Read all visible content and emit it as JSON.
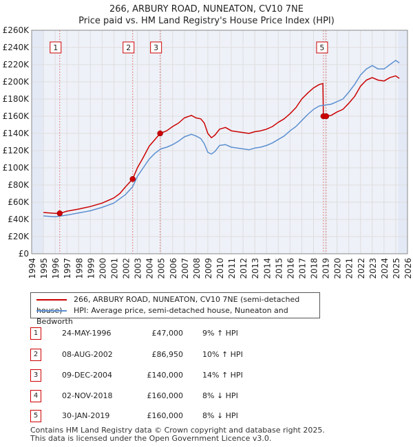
{
  "title_line1": "266, ARBURY ROAD, NUNEATON, CV10 7NE",
  "title_line2": "Price paid vs. HM Land Registry's House Price Index (HPI)",
  "legend": {
    "property": "266, ARBURY ROAD, NUNEATON, CV10 7NE (semi-detached house)",
    "hpi": "HPI: Average price, semi-detached house, Nuneaton and Bedworth"
  },
  "colors": {
    "property": "#cc0000",
    "hpi": "#5b8fd0",
    "grid": "#dddddd",
    "plot_bg": "#eef1f8",
    "highlight": "#e3e9f5"
  },
  "sales": [
    {
      "num": "1",
      "date": "24-MAY-1996",
      "price": "£47,000",
      "hpi": "9% ↑ HPI"
    },
    {
      "num": "2",
      "date": "08-AUG-2002",
      "price": "£86,950",
      "hpi": "10% ↑ HPI"
    },
    {
      "num": "3",
      "date": "09-DEC-2004",
      "price": "£140,000",
      "hpi": "14% ↑ HPI"
    },
    {
      "num": "4",
      "date": "02-NOV-2018",
      "price": "£160,000",
      "hpi": "8% ↓ HPI"
    },
    {
      "num": "5",
      "date": "30-JAN-2019",
      "price": "£160,000",
      "hpi": "8% ↓ HPI"
    }
  ],
  "footer": {
    "line1": "Contains HM Land Registry data © Crown copyright and database right 2025.",
    "line2": "This data is licensed under the Open Government Licence v3.0."
  },
  "chart_data": {
    "type": "line",
    "title": "266, ARBURY ROAD, NUNEATON, CV10 7NE",
    "subtitle": "Price paid vs. HM Land Registry's House Price Index (HPI)",
    "xlabel": "",
    "ylabel": "",
    "xlim": [
      1994,
      2026
    ],
    "ylim": [
      0,
      260000
    ],
    "y_ticks": [
      0,
      20000,
      40000,
      60000,
      80000,
      100000,
      120000,
      140000,
      160000,
      180000,
      200000,
      220000,
      240000,
      260000
    ],
    "y_tick_labels": [
      "£0",
      "£20K",
      "£40K",
      "£60K",
      "£80K",
      "£100K",
      "£120K",
      "£140K",
      "£160K",
      "£180K",
      "£200K",
      "£220K",
      "£240K",
      "£260K"
    ],
    "x_ticks": [
      1994,
      1995,
      1996,
      1997,
      1998,
      1999,
      2000,
      2001,
      2002,
      2003,
      2004,
      2005,
      2006,
      2007,
      2008,
      2009,
      2010,
      2011,
      2012,
      2013,
      2014,
      2015,
      2016,
      2017,
      2018,
      2019,
      2020,
      2021,
      2022,
      2023,
      2024,
      2025,
      2026
    ],
    "x_tick_labels": [
      "1994",
      "1995",
      "1996",
      "1997",
      "1998",
      "1999",
      "2000",
      "2001",
      "2002",
      "2003",
      "2004",
      "2005",
      "2006",
      "2007",
      "2008",
      "2009",
      "2010",
      "2011",
      "2012",
      "2013",
      "2014",
      "2015",
      "2016",
      "2017",
      "2018",
      "2019",
      "2020",
      "2021",
      "2022",
      "2023",
      "2024",
      "2025",
      "2026"
    ],
    "highlight_ranges": [
      [
        1994,
        1995
      ],
      [
        2025.2,
        2026
      ]
    ],
    "grid": true,
    "sale_markers": [
      {
        "label": "1",
        "x": 1996.39,
        "y": 47000
      },
      {
        "label": "2",
        "x": 2002.6,
        "y": 86950
      },
      {
        "label": "3",
        "x": 2004.94,
        "y": 140000
      },
      {
        "label": "4",
        "x": 2018.84,
        "y": 160000
      },
      {
        "label": "5",
        "x": 2019.08,
        "y": 160000
      }
    ],
    "marker_label_numbers": [
      "1",
      "2",
      "3",
      "5"
    ],
    "series": [
      {
        "name": "266, ARBURY ROAD, NUNEATON, CV10 7NE (semi-detached house)",
        "color": "#cc0000",
        "points": [
          [
            1995,
            48000
          ],
          [
            1995.5,
            47500
          ],
          [
            1996,
            47000
          ],
          [
            1996.39,
            47000
          ],
          [
            1997,
            49500
          ],
          [
            1998,
            52000
          ],
          [
            1999,
            55000
          ],
          [
            2000,
            59000
          ],
          [
            2001,
            65000
          ],
          [
            2001.5,
            70000
          ],
          [
            2002,
            78000
          ],
          [
            2002.6,
            86950
          ],
          [
            2003,
            100000
          ],
          [
            2003.5,
            112000
          ],
          [
            2004,
            125000
          ],
          [
            2004.5,
            133000
          ],
          [
            2004.94,
            140000
          ],
          [
            2005.5,
            143000
          ],
          [
            2006,
            148000
          ],
          [
            2006.5,
            152000
          ],
          [
            2007,
            158000
          ],
          [
            2007.6,
            161000
          ],
          [
            2008,
            158000
          ],
          [
            2008.4,
            157000
          ],
          [
            2008.7,
            152000
          ],
          [
            2009,
            140000
          ],
          [
            2009.3,
            135000
          ],
          [
            2009.6,
            138000
          ],
          [
            2010,
            145000
          ],
          [
            2010.5,
            147000
          ],
          [
            2011,
            143000
          ],
          [
            2011.5,
            142000
          ],
          [
            2012,
            141000
          ],
          [
            2012.5,
            140000
          ],
          [
            2013,
            142000
          ],
          [
            2013.5,
            143000
          ],
          [
            2014,
            145000
          ],
          [
            2014.5,
            148000
          ],
          [
            2015,
            153000
          ],
          [
            2015.5,
            157000
          ],
          [
            2016,
            163000
          ],
          [
            2016.5,
            170000
          ],
          [
            2017,
            180000
          ],
          [
            2017.5,
            187000
          ],
          [
            2018,
            193000
          ],
          [
            2018.5,
            197000
          ],
          [
            2018.8,
            198000
          ],
          [
            2018.84,
            160000
          ],
          [
            2019.08,
            160000
          ],
          [
            2019.5,
            161000
          ],
          [
            2020,
            165000
          ],
          [
            2020.5,
            168000
          ],
          [
            2021,
            175000
          ],
          [
            2021.5,
            183000
          ],
          [
            2022,
            195000
          ],
          [
            2022.5,
            202000
          ],
          [
            2023,
            205000
          ],
          [
            2023.5,
            202000
          ],
          [
            2024,
            201000
          ],
          [
            2024.5,
            205000
          ],
          [
            2025,
            207000
          ],
          [
            2025.3,
            204000
          ]
        ]
      },
      {
        "name": "HPI: Average price, semi-detached house, Nuneaton and Bedworth",
        "color": "#5b8fd0",
        "points": [
          [
            1995,
            44000
          ],
          [
            1995.5,
            43500
          ],
          [
            1996,
            43000
          ],
          [
            1997,
            45000
          ],
          [
            1998,
            47500
          ],
          [
            1999,
            50000
          ],
          [
            2000,
            54000
          ],
          [
            2001,
            59000
          ],
          [
            2002,
            69000
          ],
          [
            2002.6,
            78000
          ],
          [
            2003,
            90000
          ],
          [
            2003.5,
            100000
          ],
          [
            2004,
            110000
          ],
          [
            2004.5,
            117000
          ],
          [
            2005,
            122000
          ],
          [
            2005.5,
            124000
          ],
          [
            2006,
            127000
          ],
          [
            2006.5,
            131000
          ],
          [
            2007,
            136000
          ],
          [
            2007.6,
            139000
          ],
          [
            2008,
            137000
          ],
          [
            2008.4,
            134000
          ],
          [
            2008.7,
            128000
          ],
          [
            2009,
            118000
          ],
          [
            2009.3,
            116000
          ],
          [
            2009.6,
            119000
          ],
          [
            2010,
            126000
          ],
          [
            2010.5,
            127000
          ],
          [
            2011,
            124000
          ],
          [
            2011.5,
            123000
          ],
          [
            2012,
            122000
          ],
          [
            2012.5,
            121000
          ],
          [
            2013,
            123000
          ],
          [
            2013.5,
            124000
          ],
          [
            2014,
            126000
          ],
          [
            2014.5,
            129000
          ],
          [
            2015,
            133000
          ],
          [
            2015.5,
            137000
          ],
          [
            2016,
            143000
          ],
          [
            2016.5,
            148000
          ],
          [
            2017,
            155000
          ],
          [
            2017.5,
            162000
          ],
          [
            2018,
            168000
          ],
          [
            2018.5,
            172000
          ],
          [
            2019,
            173000
          ],
          [
            2019.5,
            174000
          ],
          [
            2020,
            177000
          ],
          [
            2020.5,
            180000
          ],
          [
            2021,
            188000
          ],
          [
            2021.5,
            197000
          ],
          [
            2022,
            208000
          ],
          [
            2022.5,
            215000
          ],
          [
            2023,
            219000
          ],
          [
            2023.5,
            215000
          ],
          [
            2024,
            215000
          ],
          [
            2024.5,
            220000
          ],
          [
            2025,
            225000
          ],
          [
            2025.3,
            222000
          ]
        ]
      }
    ]
  }
}
